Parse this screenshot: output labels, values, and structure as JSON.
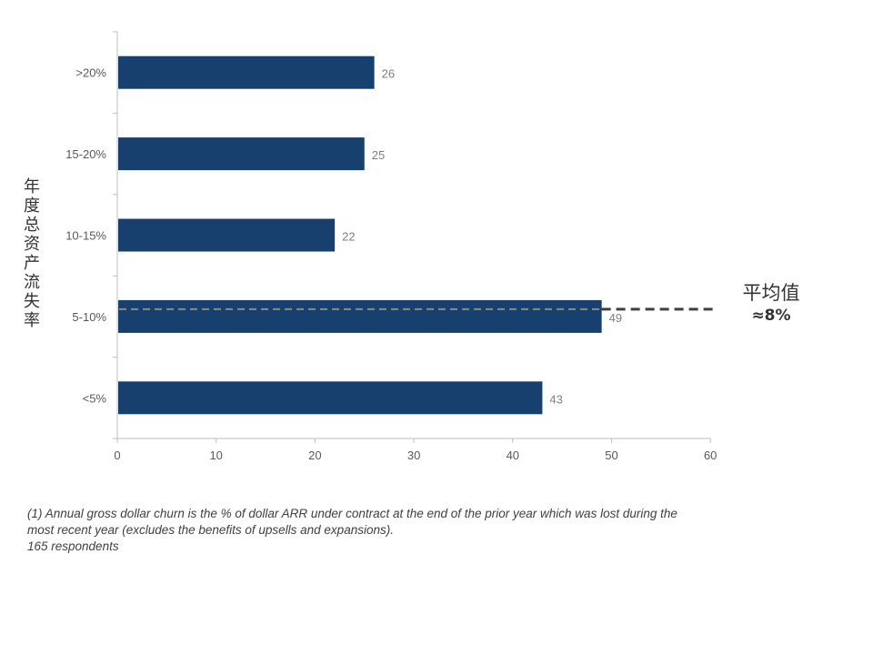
{
  "chart_data": {
    "type": "bar",
    "orientation": "horizontal",
    "categories": [
      ">20%",
      "15-20%",
      "10-15%",
      "5-10%",
      "<5%"
    ],
    "values": [
      26,
      25,
      22,
      49,
      43
    ],
    "ylabel": "年度总资产流失率",
    "xlim": [
      0,
      60
    ],
    "xticks": [
      0,
      10,
      20,
      30,
      40,
      50,
      60
    ],
    "grid": false,
    "bar_color": "#17406f",
    "annotation": {
      "title": "平均值",
      "value": "≈8%",
      "category": "5-10%",
      "line_style": "dashed"
    }
  },
  "footnote": {
    "line1": "(1) Annual gross dollar churn is the % of dollar ARR under contract at the end of the prior year which was lost during the",
    "line2": "most recent year (excludes the benefits of upsells and expansions).",
    "line3": "165 respondents"
  }
}
